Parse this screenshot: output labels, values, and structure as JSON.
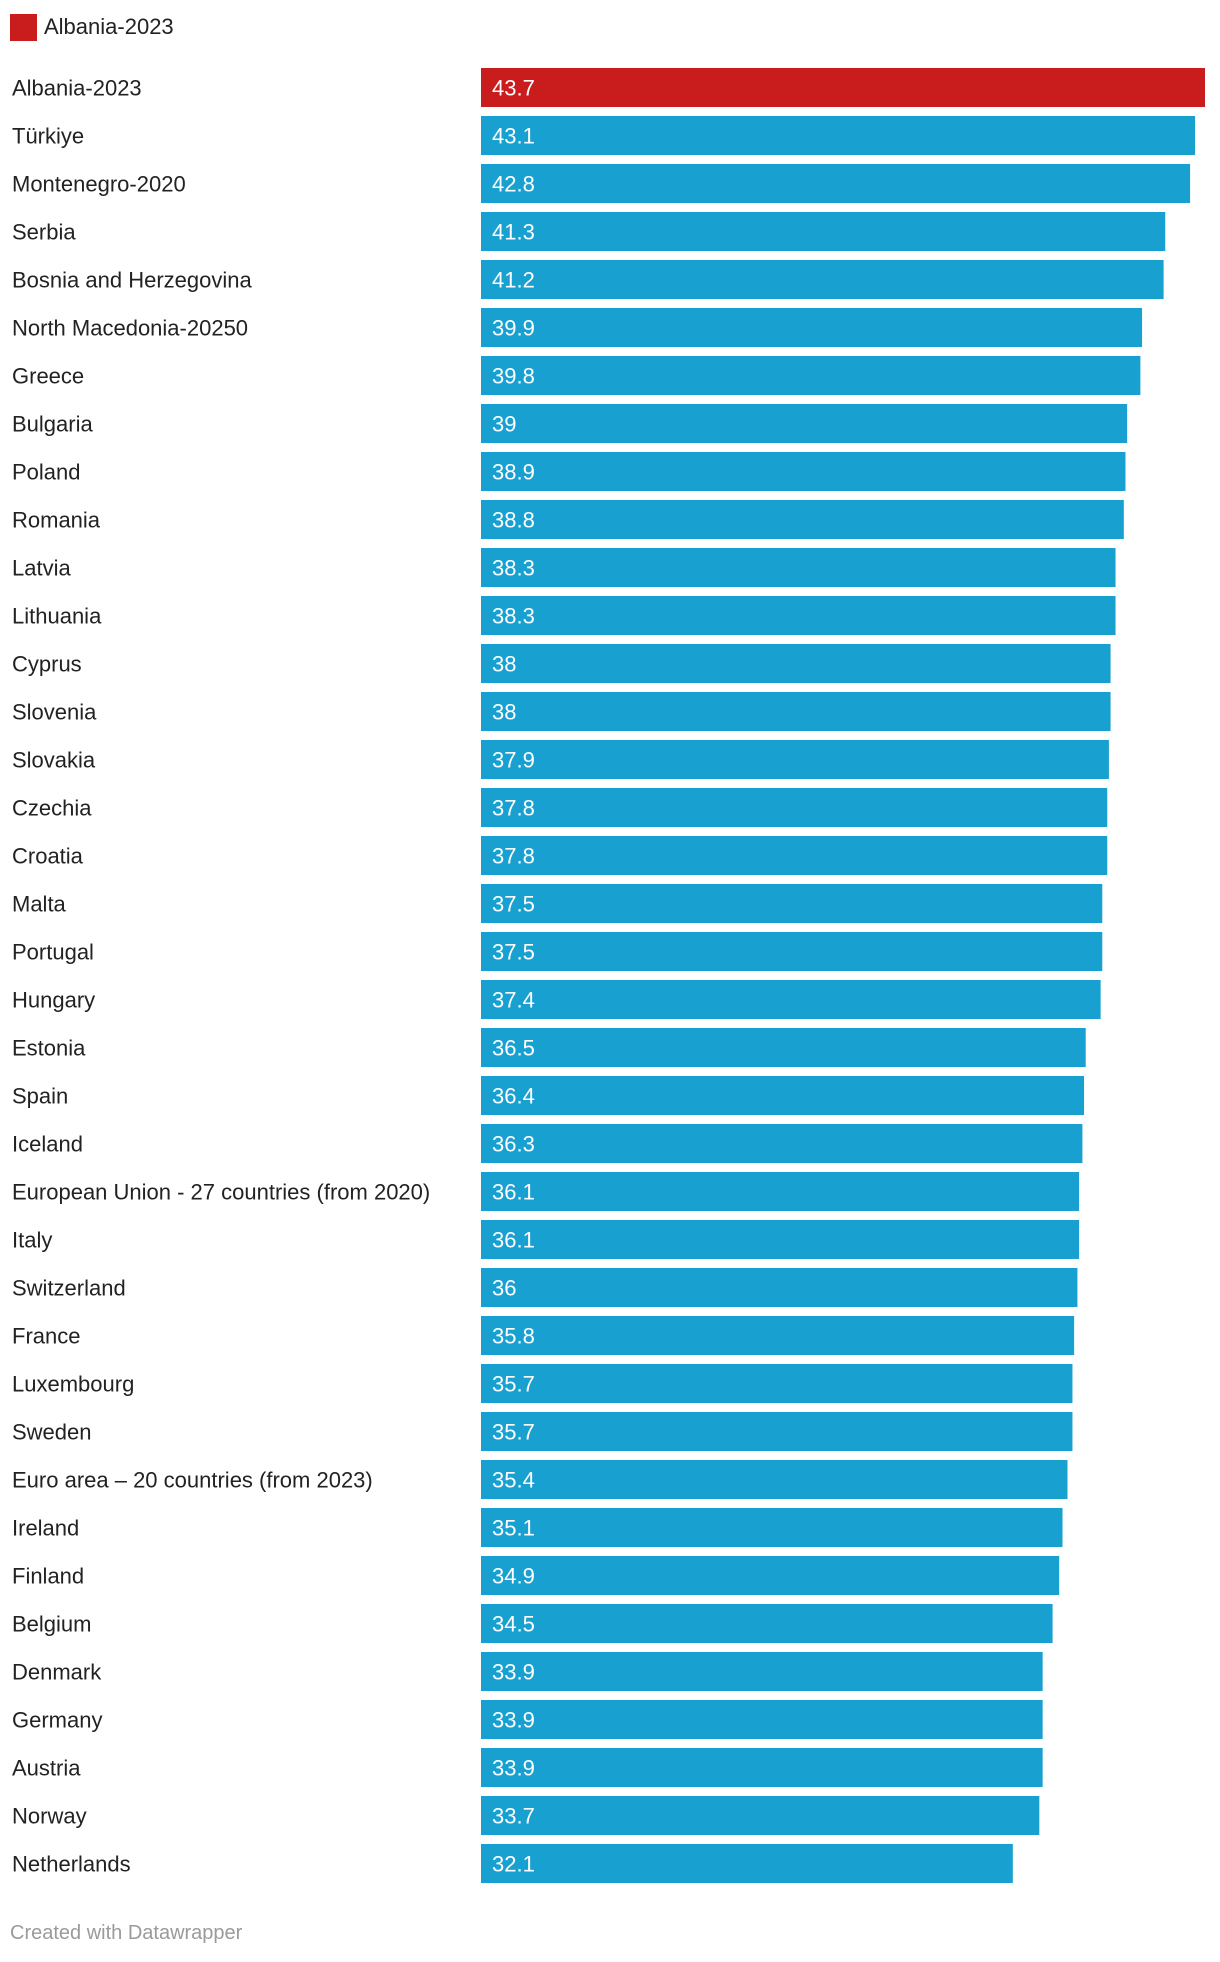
{
  "legend": {
    "label": "Albania-2023",
    "color": "#c91c1c"
  },
  "colors": {
    "highlight": "#c91c1c",
    "default": "#18a0d0"
  },
  "credit": "Created with Datawrapper",
  "chart_data": {
    "type": "bar",
    "orientation": "horizontal",
    "title": "",
    "xlabel": "",
    "ylabel": "",
    "xlim": [
      0,
      43.7
    ],
    "legend_position": "top-left",
    "highlight": "Albania-2023",
    "categories": [
      "Albania-2023",
      "Türkiye",
      "Montenegro-2020",
      "Serbia",
      "Bosnia and Herzegovina",
      "North Macedonia-20250",
      "Greece",
      "Bulgaria",
      "Poland",
      "Romania",
      "Latvia",
      "Lithuania",
      "Cyprus",
      "Slovenia",
      "Slovakia",
      "Czechia",
      "Croatia",
      "Malta",
      "Portugal",
      "Hungary",
      "Estonia",
      "Spain",
      "Iceland",
      "European Union - 27 countries (from 2020)",
      "Italy",
      "Switzerland",
      "France",
      "Luxembourg",
      "Sweden",
      "Euro area – 20 countries (from 2023)",
      "Ireland",
      "Finland",
      "Belgium",
      "Denmark",
      "Germany",
      "Austria",
      "Norway",
      "Netherlands"
    ],
    "values": [
      43.7,
      43.1,
      42.8,
      41.3,
      41.2,
      39.9,
      39.8,
      39,
      38.9,
      38.8,
      38.3,
      38.3,
      38,
      38,
      37.9,
      37.8,
      37.8,
      37.5,
      37.5,
      37.4,
      36.5,
      36.4,
      36.3,
      36.1,
      36.1,
      36,
      35.8,
      35.7,
      35.7,
      35.4,
      35.1,
      34.9,
      34.5,
      33.9,
      33.9,
      33.9,
      33.7,
      32.1
    ],
    "value_labels": [
      "43.7",
      "43.1",
      "42.8",
      "41.3",
      "41.2",
      "39.9",
      "39.8",
      "39",
      "38.9",
      "38.8",
      "38.3",
      "38.3",
      "38",
      "38",
      "37.9",
      "37.8",
      "37.8",
      "37.5",
      "37.5",
      "37.4",
      "36.5",
      "36.4",
      "36.3",
      "36.1",
      "36.1",
      "36",
      "35.8",
      "35.7",
      "35.7",
      "35.4",
      "35.1",
      "34.9",
      "34.5",
      "33.9",
      "33.9",
      "33.9",
      "33.7",
      "32.1"
    ]
  }
}
